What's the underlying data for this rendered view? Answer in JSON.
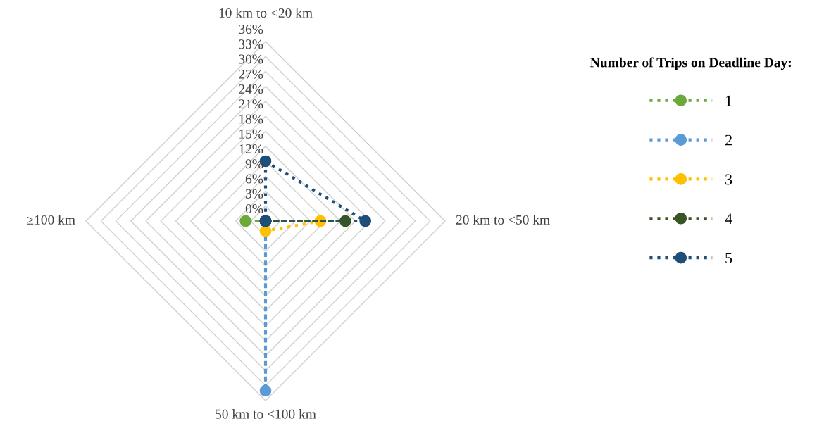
{
  "chart_data": {
    "type": "radar",
    "categories": [
      "10 km to <20 km",
      "20 km to <50 km",
      "50 km to <100 km",
      "≥100 km"
    ],
    "series": [
      {
        "name": "1",
        "color": "#6aaa3a",
        "values": [
          0,
          0,
          0,
          4
        ]
      },
      {
        "name": "2",
        "color": "#5b9bd5",
        "values": [
          0,
          0,
          34,
          0
        ]
      },
      {
        "name": "3",
        "color": "#ffc000",
        "values": [
          0,
          11,
          2,
          0
        ]
      },
      {
        "name": "4",
        "color": "#375623",
        "values": [
          0,
          16,
          0,
          0
        ]
      },
      {
        "name": "5",
        "color": "#1f4e79",
        "values": [
          12,
          20,
          0,
          0
        ]
      }
    ],
    "ylim": [
      0,
      36
    ],
    "yticks": [
      {
        "value": 0,
        "label": "0%"
      },
      {
        "value": 3,
        "label": "3%"
      },
      {
        "value": 6,
        "label": "6%"
      },
      {
        "value": 9,
        "label": "9%"
      },
      {
        "value": 12,
        "label": "12%"
      },
      {
        "value": 15,
        "label": "15%"
      },
      {
        "value": 18,
        "label": "18%"
      },
      {
        "value": 21,
        "label": "21%"
      },
      {
        "value": 24,
        "label": "24%"
      },
      {
        "value": 27,
        "label": "27%"
      },
      {
        "value": 30,
        "label": "30%"
      },
      {
        "value": 33,
        "label": "33%"
      },
      {
        "value": 36,
        "label": "36%"
      }
    ],
    "legend_title": "Number of Trips on Deadline Day:",
    "legend": "right",
    "grid": true,
    "marker": "circle",
    "line_style": "dotted"
  }
}
